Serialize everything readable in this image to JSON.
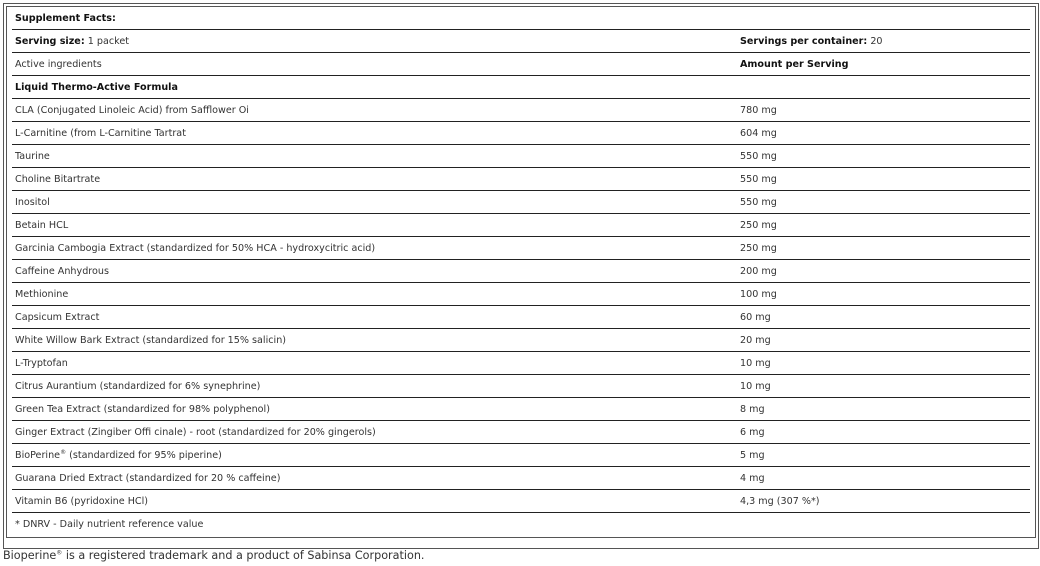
{
  "title": "Supplement Facts:",
  "serving_size_label": "Serving size:",
  "serving_size_value": "1 packet",
  "servings_label": "Servings per container:",
  "servings_value": "20",
  "col_ingredients": "Active ingredients",
  "col_amount": "Amount per Serving",
  "section": "Liquid Thermo-Active Formula",
  "ingredients": [
    {
      "name": " CLA (Conjugated Linoleic Acid) from Safflower Oi",
      "amount": "780 mg"
    },
    {
      "name": " L-Carnitine (from L-Carnitine Tartrat",
      "amount": "604 mg"
    },
    {
      "name": "Taurine",
      "amount": "550 mg"
    },
    {
      "name": "Choline Bitartrate",
      "amount": "550 mg"
    },
    {
      "name": "Inositol",
      "amount": "550 mg"
    },
    {
      "name": "Betain HCL",
      "amount": "250 mg"
    },
    {
      "name": "Garcinia Cambogia Extract (standardized for 50% HCA - hydroxycitric acid)",
      "amount": "250 mg"
    },
    {
      "name": "Caffeine Anhydrous",
      "amount": "200 mg"
    },
    {
      "name": "Methionine",
      "amount": "100 mg"
    },
    {
      "name": "Capsicum Extract",
      "amount": "60 mg"
    },
    {
      "name": "White Willow Bark Extract (standardized for 15% salicin)",
      "amount": "20 mg"
    },
    {
      "name": "L-Tryptofan",
      "amount": "10 mg"
    },
    {
      "name": "Citrus Aurantium (standardized for 6% synephrine)",
      "amount": "10 mg"
    },
    {
      "name": "Green Tea Extract (standardized for 98% polyphenol)",
      "amount": "8 mg"
    },
    {
      "name": "Ginger Extract (Zingiber Offi cinale) - root (standardized for 20% gingerols)",
      "amount": "6 mg"
    },
    {
      "name": "BioPerine® (standardized for 95% piperine)",
      "amount": "5 mg"
    },
    {
      "name": "Guarana Dried Extract (standardized for 20 % caffeine)",
      "amount": "4 mg"
    },
    {
      "name": "Vitamin B6 (pyridoxine HCl)",
      "amount": "4,3 mg (307 %*)"
    }
  ],
  "note": "* DNRV - Daily nutrient reference value",
  "footer": "Bioperine® is a registered trademark and a product of Sabinsa Corporation."
}
